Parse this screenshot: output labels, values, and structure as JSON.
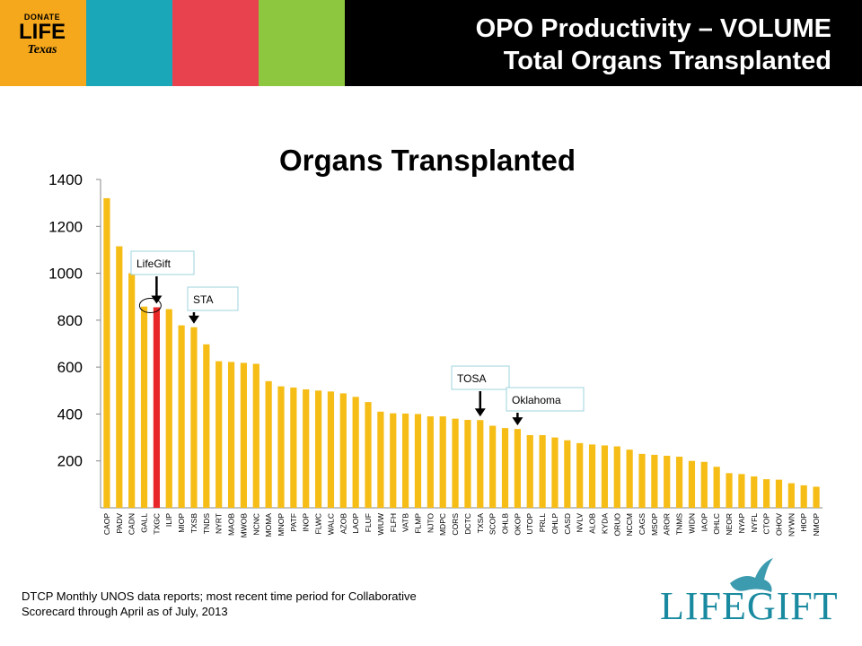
{
  "banner": {
    "logo_lines": [
      "DONATE",
      "LIFE",
      "Texas"
    ],
    "title_line1": "OPO Productivity – VOLUME",
    "title_line2": "Total Organs Transplanted",
    "colors": {
      "orange": "#f6a81c",
      "teal": "#1aa7b8",
      "red": "#e8424f",
      "green": "#8dc63f",
      "black": "#000000"
    }
  },
  "chart_data": {
    "type": "bar",
    "title": "Organs Transplanted",
    "xlabel": "",
    "ylabel": "",
    "ylim": [
      0,
      1400
    ],
    "yticks": [
      200,
      400,
      600,
      800,
      1000,
      1200,
      1400
    ],
    "grid": false,
    "bar_color": "#f6bd16",
    "highlight_color": "#e8262a",
    "highlight_category": "TXGC",
    "categories": [
      "CAOP",
      "PADV",
      "CADN",
      "GALL",
      "TXGC",
      "ILIP",
      "MIOP",
      "TXSB",
      "TNDS",
      "NYRT",
      "MAOB",
      "MWOB",
      "NCNC",
      "MOMA",
      "MNOP",
      "PATF",
      "INOP",
      "FLWC",
      "WALC",
      "AZOB",
      "LAOP",
      "FLUF",
      "WIUW",
      "FLFH",
      "VATB",
      "FLMP",
      "NJTO",
      "MDPC",
      "CORS",
      "DCTC",
      "TXSA",
      "SCOP",
      "OHLB",
      "OKOP",
      "UTOP",
      "PRLL",
      "OHLP",
      "CASD",
      "NVLV",
      "ALOB",
      "KYDA",
      "ORUO",
      "NCCM",
      "CAGS",
      "MSOP",
      "AROR",
      "TNMS",
      "WIDN",
      "IAOP",
      "OHLC",
      "NEOR",
      "NYAP",
      "NYFL",
      "CTOP",
      "OHOV",
      "NYWN",
      "HIOP",
      "NMOP"
    ],
    "values": [
      1320,
      1115,
      1000,
      858,
      855,
      847,
      778,
      770,
      697,
      625,
      622,
      618,
      614,
      540,
      518,
      513,
      505,
      500,
      496,
      488,
      473,
      451,
      410,
      403,
      402,
      400,
      390,
      390,
      380,
      375,
      374,
      350,
      340,
      336,
      310,
      310,
      300,
      288,
      276,
      270,
      266,
      262,
      248,
      230,
      226,
      222,
      218,
      200,
      196,
      175,
      148,
      144,
      134,
      122,
      120,
      105,
      96,
      90
    ],
    "annotations": [
      {
        "label": "LifeGift",
        "target": "TXGC"
      },
      {
        "label": "STA",
        "target": "TXSB"
      },
      {
        "label": "TOSA",
        "target": "TXSA"
      },
      {
        "label": "Oklahoma",
        "target": "OKOP"
      }
    ]
  },
  "footnote": "DTCP Monthly UNOS data reports; most recent time period for Collaborative Scorecard through April as of July, 2013",
  "lifegift_logo": {
    "text": "LIFEGIFT",
    "color": "#1a8aa0",
    "icon": "dove-icon"
  }
}
